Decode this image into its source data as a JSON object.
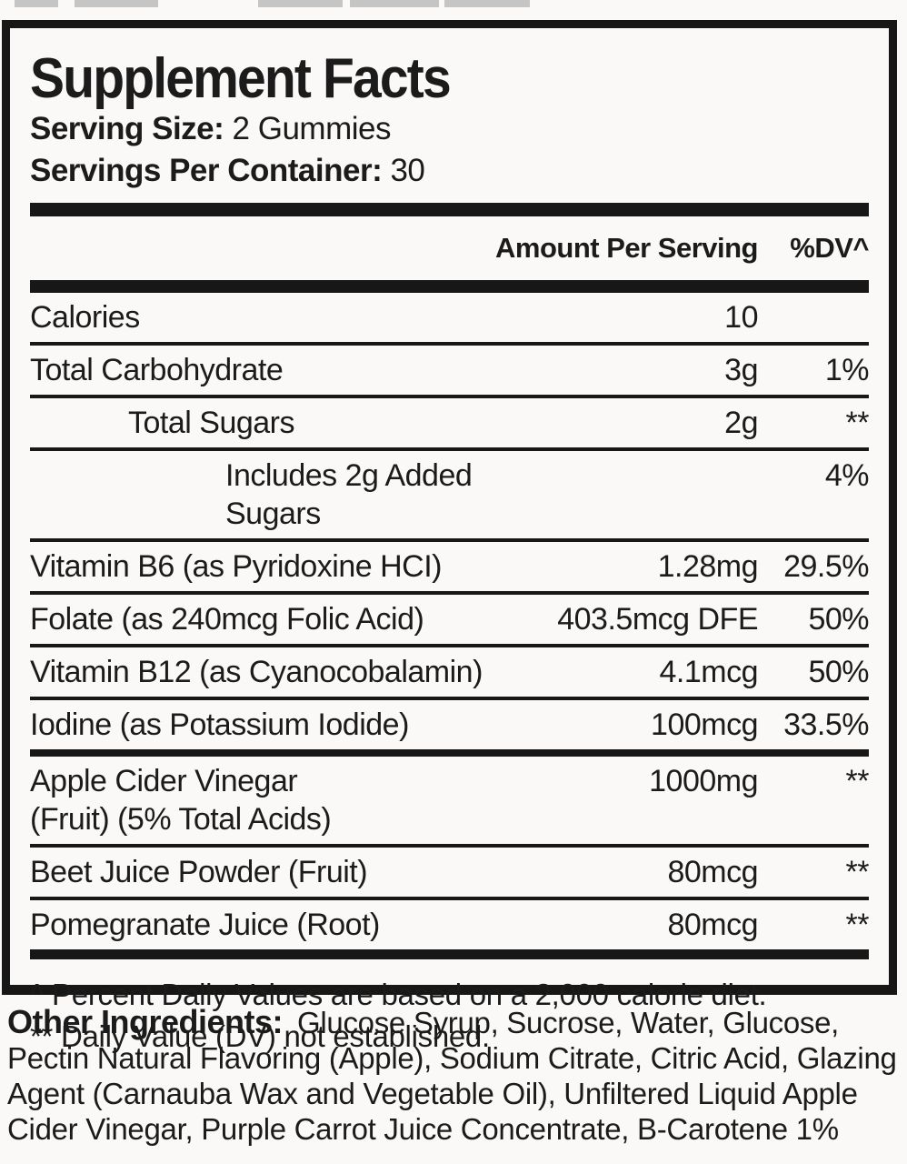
{
  "colors": {
    "text": "#1b1b1b",
    "bar": "#171717",
    "background": "#faf9f7",
    "thumbnail_gray": "#c5c5c5"
  },
  "label": {
    "title": "Supplement Facts",
    "serving_size": {
      "label": "Serving Size:",
      "value": "2 Gummies"
    },
    "servings_per_container": {
      "label": "Servings Per Container:",
      "value": "30"
    },
    "columns": {
      "amount": "Amount Per Serving",
      "dv": "%DV^"
    },
    "rows": [
      {
        "name": "Calories",
        "amount": "10",
        "dv": ""
      },
      {
        "name": "Total Carbohydrate",
        "amount": "3g",
        "dv": "1%"
      },
      {
        "name": "Total Sugars",
        "amount": "2g",
        "dv": "**"
      },
      {
        "name": "Includes 2g Added Sugars",
        "amount": "",
        "dv": "4%"
      },
      {
        "name": "Vitamin B6 (as Pyridoxine HCI)",
        "amount": "1.28mg",
        "dv": "29.5%"
      },
      {
        "name": "Folate (as 240mcg Folic Acid)",
        "amount": "403.5mcg DFE",
        "dv": "50%"
      },
      {
        "name": "Vitamin B12 (as Cyanocobalamin)",
        "amount": "4.1mcg",
        "dv": "50%"
      },
      {
        "name": "Iodine (as Potassium Iodide)",
        "amount": "100mcg",
        "dv": "33.5%"
      },
      {
        "name": "Apple Cider Vinegar",
        "name2": "(Fruit) (5% Total Acids)",
        "amount": "1000mg",
        "dv": "**"
      },
      {
        "name": "Beet Juice Powder (Fruit)",
        "amount": "80mcg",
        "dv": "**"
      },
      {
        "name": "Pomegranate Juice (Root)",
        "amount": "80mcg",
        "dv": "**"
      }
    ],
    "footnotes": [
      "^ Percent Daily Values are based on a 2,000 calorie diet.",
      "** Daily Value (DV) not established."
    ]
  },
  "other_ingredients": {
    "label": "Other Ingredients:",
    "text": "Glucose Syrup, Sucrose, Water, Glucose, Pectin Natural Flavoring (Apple), Sodium Citrate, Citric Acid, Glazing Agent (Carnauba Wax and Vegetable Oil), Unfiltered Liquid Apple Cider Vinegar, Purple Carrot Juice Concentrate, B-Carotene 1%"
  }
}
